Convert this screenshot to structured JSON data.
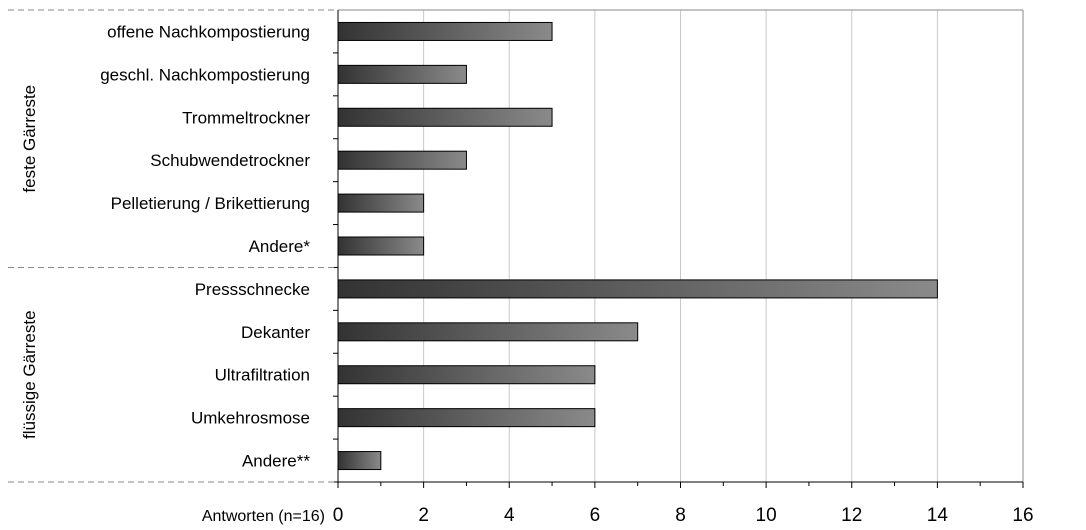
{
  "chart_data": {
    "type": "bar",
    "orientation": "horizontal",
    "categories": [
      "offene Nachkompostierung",
      "geschl. Nachkompostierung",
      "Trommeltrockner",
      "Schubwendetrockner",
      "Pelletierung / Brikettierung",
      "Andere*",
      "Pressschnecke",
      "Dekanter",
      "Ultrafiltration",
      "Umkehrosmose",
      "Andere**"
    ],
    "values": [
      5,
      3,
      5,
      3,
      2,
      2,
      14,
      7,
      6,
      6,
      1
    ],
    "groups": [
      {
        "label": "feste Gärreste",
        "count": 6
      },
      {
        "label": "flüssige Gärreste",
        "count": 5
      }
    ],
    "xlabel": "Antworten (n=16)",
    "xlim": [
      0,
      16
    ],
    "xticks": [
      "0",
      "2",
      "4",
      "6",
      "8",
      "10",
      "12",
      "14",
      "16"
    ],
    "grid": true,
    "bar_color_dark": "#333333",
    "bar_color_light": "#8a8a8a"
  }
}
